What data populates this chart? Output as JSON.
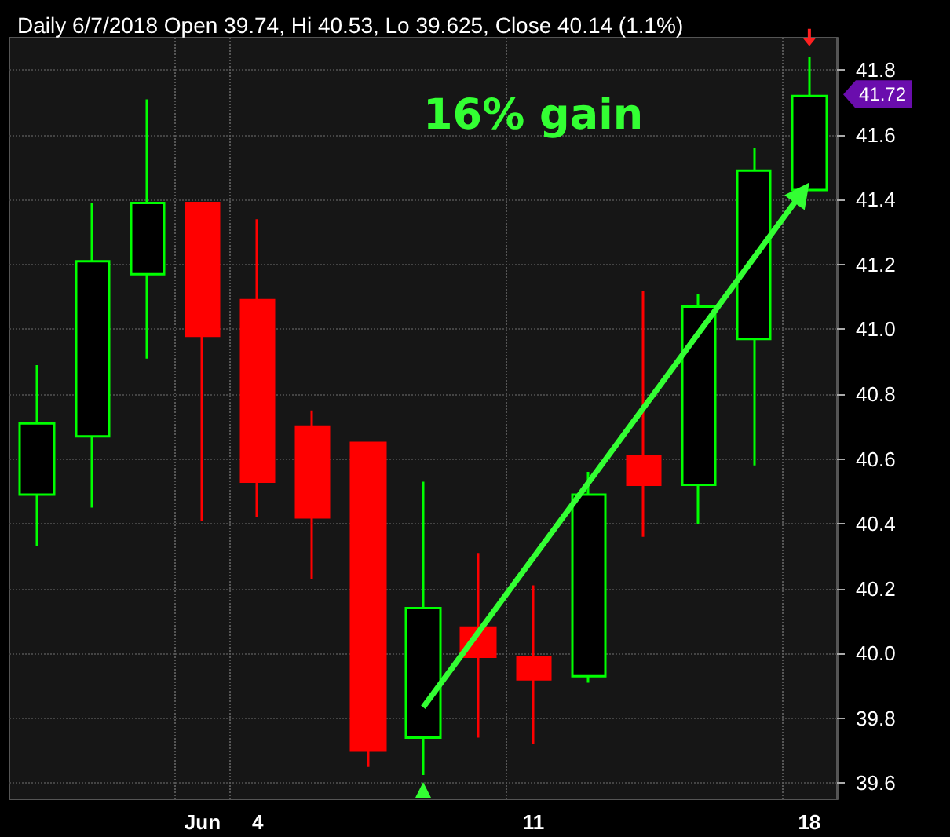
{
  "chart_data": {
    "type": "candlestick",
    "title": "Daily 6/7/2018 Open 39.74, Hi 40.53, Lo 39.625, Close 40.14 (1.1%)",
    "categories": [
      null,
      null,
      null,
      "Jun",
      "4",
      null,
      null,
      null,
      null,
      "11",
      null,
      null,
      null,
      null,
      "18"
    ],
    "ohlc": [
      [
        40.49,
        40.89,
        40.33,
        40.71
      ],
      [
        40.67,
        41.39,
        40.45,
        41.21
      ],
      [
        41.17,
        41.71,
        40.91,
        41.39
      ],
      [
        41.39,
        41.39,
        40.41,
        40.98
      ],
      [
        41.09,
        41.34,
        40.42,
        40.53
      ],
      [
        40.7,
        40.75,
        40.23,
        40.42
      ],
      [
        40.65,
        40.65,
        39.65,
        39.7
      ],
      [
        39.74,
        40.53,
        39.625,
        40.14
      ],
      [
        40.08,
        40.31,
        39.74,
        39.99
      ],
      [
        39.99,
        40.21,
        39.72,
        39.92
      ],
      [
        39.93,
        40.56,
        39.91,
        40.49
      ],
      [
        40.61,
        41.12,
        40.36,
        40.52
      ],
      [
        40.52,
        41.11,
        40.4,
        41.07
      ],
      [
        40.97,
        41.56,
        40.58,
        41.49
      ],
      [
        41.43,
        41.84,
        41.43,
        41.72
      ]
    ],
    "colors": [
      "#00ff00",
      "#00ff00",
      "#00ff00",
      "#ff0000",
      "#ff0000",
      "#ff0000",
      "#ff0000",
      "#00ff00",
      "#ff0000",
      "#ff0000",
      "#00ff00",
      "#ff0000",
      "#00ff00",
      "#00ff00",
      "#00ff00"
    ],
    "ylim": [
      39.55,
      41.9
    ],
    "yticks": [
      39.6,
      39.8,
      {
        "value": 40,
        "label": "40.0"
      },
      40.2,
      40.4,
      40.6,
      40.8,
      {
        "value": 41,
        "label": "41.0"
      },
      41.2,
      41.4,
      41.6,
      41.8
    ],
    "grid": true,
    "annotations": [
      "16% gain",
      "41.72"
    ]
  }
}
